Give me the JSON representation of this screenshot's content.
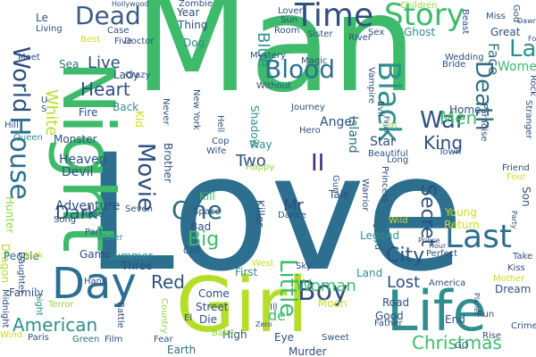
{
  "palette": {
    "navy": "#3b3b82",
    "slate": "#2f4f7f",
    "blue": "#2c6f8f",
    "teal": "#21918c",
    "green": "#3dbb6a",
    "lime": "#8fd744",
    "yellow": "#c8e020",
    "purple": "#482878"
  },
  "words": [
    {
      "text": "Man",
      "color": "#3dbb6a"
    },
    {
      "text": "Love",
      "color": "#2c6f8f"
    },
    {
      "text": "Girl",
      "color": "#b5de2b"
    },
    {
      "text": "Night",
      "color": "#3dbb6a"
    },
    {
      "text": "Life",
      "color": "#2f8f8c"
    },
    {
      "text": "Day",
      "color": "#2c6f8f"
    },
    {
      "text": "Time",
      "color": "#2f4f7f"
    },
    {
      "text": "Story",
      "color": "#3dbb6a"
    },
    {
      "text": "Dead",
      "color": "#3b5b82"
    },
    {
      "text": "House",
      "color": "#2c6f8f"
    },
    {
      "text": "World",
      "color": "#2f4f7f"
    },
    {
      "text": "Black",
      "color": "#2f8f8c"
    },
    {
      "text": "Blood",
      "color": "#2c6f8f"
    },
    {
      "text": "Death",
      "color": "#2f6f7f"
    },
    {
      "text": "Last",
      "color": "#2c6f8f"
    },
    {
      "text": "War",
      "color": "#2f4f7f"
    },
    {
      "text": "Movie",
      "color": "#2f4f7f"
    },
    {
      "text": "One",
      "color": "#2f6f7f"
    },
    {
      "text": "Boy",
      "color": "#2f4f7f"
    },
    {
      "text": "Heart",
      "color": "#2f4f7f"
    },
    {
      "text": "Big",
      "color": "#3dbb6a"
    },
    {
      "text": "Little",
      "color": "#3dbb6a"
    },
    {
      "text": "Christmas",
      "color": "#3dbb6a"
    },
    {
      "text": "American",
      "color": "#2f8f8c"
    },
    {
      "text": "City",
      "color": "#2f4f7f"
    },
    {
      "text": "Secret",
      "color": "#2f4f7f"
    },
    {
      "text": "Woman",
      "color": "#3dbb6a"
    },
    {
      "text": "Lost",
      "color": "#2f4f7f"
    },
    {
      "text": "Red",
      "color": "#2f4f7f"
    },
    {
      "text": "Dark",
      "color": "#2f4f7f"
    },
    {
      "text": "King",
      "color": "#2f4f7f"
    },
    {
      "text": "Men",
      "color": "#3dbb6a"
    },
    {
      "text": "Live",
      "color": "#2f4f7f"
    },
    {
      "text": "White",
      "color": "#b5de2b"
    },
    {
      "text": "Blue",
      "color": "#2f8f8c"
    },
    {
      "text": "Mr",
      "color": "#2f4f7f"
    },
    {
      "text": "Two",
      "color": "#2f4f7f"
    },
    {
      "text": "II",
      "color": "#482878"
    },
    {
      "text": "La",
      "color": "#2f8f8c"
    },
    {
      "text": "Women",
      "color": "#3dbb6a"
    },
    {
      "text": "Face",
      "color": "#2f6f7f"
    },
    {
      "text": "Ghost",
      "color": "#2f8f8c"
    },
    {
      "text": "Great",
      "color": "#2f4f7f"
    },
    {
      "text": "Home",
      "color": "#2f4f7f"
    },
    {
      "text": "Angel",
      "color": "#2f4f7f"
    },
    {
      "text": "Star",
      "color": "#2f4f7f"
    },
    {
      "text": "Island",
      "color": "#2f6f7f"
    },
    {
      "text": "Adventure",
      "color": "#2f4f7f"
    },
    {
      "text": "Heaven",
      "color": "#2f4f7f"
    },
    {
      "text": "Devil",
      "color": "#2f4f7f"
    },
    {
      "text": "Monster",
      "color": "#2f4f7f"
    },
    {
      "text": "Back",
      "color": "#2f8f8c"
    },
    {
      "text": "Fire",
      "color": "#2f4f7f"
    },
    {
      "text": "Lady",
      "color": "#2f4f7f"
    },
    {
      "text": "Thing",
      "color": "#2f4f7f"
    },
    {
      "text": "Year",
      "color": "#2f4f7f"
    },
    {
      "text": "Dog",
      "color": "#2f8f8c"
    },
    {
      "text": "Sea",
      "color": "#2f6f7f"
    },
    {
      "text": "Brother",
      "color": "#2f4f7f"
    },
    {
      "text": "Shadow",
      "color": "#2f8f8c"
    },
    {
      "text": "Killer",
      "color": "#2f4f7f"
    },
    {
      "text": "Kill",
      "color": "#3dbb6a"
    },
    {
      "text": "Summer",
      "color": "#2f8f8c"
    },
    {
      "text": "Three",
      "color": "#2f4f7f"
    },
    {
      "text": "Game",
      "color": "#2f4f7f"
    },
    {
      "text": "Dragon",
      "color": "#b5de2b"
    },
    {
      "text": "People",
      "color": "#2f6f7f"
    },
    {
      "text": "Family",
      "color": "#2f4f7f"
    },
    {
      "text": "Hunter",
      "color": "#8fd744"
    },
    {
      "text": "Hand",
      "color": "#2f4f7f"
    },
    {
      "text": "Street",
      "color": "#2f4f7f"
    },
    {
      "text": "Come",
      "color": "#2f4f7f"
    },
    {
      "text": "Die",
      "color": "#2f4f7f"
    },
    {
      "text": "High",
      "color": "#2f4f7f"
    },
    {
      "text": "Eye",
      "color": "#2f4f7f"
    },
    {
      "text": "Earth",
      "color": "#2f6f7f"
    },
    {
      "text": "Murder",
      "color": "#2f4f7f"
    },
    {
      "text": "Sweet",
      "color": "#2f4f7f"
    },
    {
      "text": "Father",
      "color": "#2f4f7f"
    },
    {
      "text": "Good",
      "color": "#2f4f7f"
    },
    {
      "text": "End",
      "color": "#2f4f7f"
    },
    {
      "text": "Run",
      "color": "#2f4f7f"
    },
    {
      "text": "Road",
      "color": "#2f4f7f"
    },
    {
      "text": "Dream",
      "color": "#2f4f7f"
    },
    {
      "text": "Young",
      "color": "#c8e020"
    },
    {
      "text": "Return",
      "color": "#c8e020"
    },
    {
      "text": "Beyond",
      "color": "#2f6f7f"
    },
    {
      "text": "Legend",
      "color": "#2f8f8c"
    },
    {
      "text": "Land",
      "color": "#2f8f8c"
    },
    {
      "text": "Moon",
      "color": "#c8e020"
    },
    {
      "text": "First",
      "color": "#2f8f8c"
    },
    {
      "text": "Bad",
      "color": "#2f4f7f"
    },
    {
      "text": "Call",
      "color": "#2f4f7f"
    },
    {
      "text": "Space",
      "color": "#2f4f7f"
    },
    {
      "text": "Dance",
      "color": "#2f4f7f"
    },
    {
      "text": "Son",
      "color": "#2f4f7f"
    },
    {
      "text": "Friend",
      "color": "#2f4f7f"
    },
    {
      "text": "Four",
      "color": "#c8e020"
    },
    {
      "text": "Town",
      "color": "#2f4f7f"
    },
    {
      "text": "Long",
      "color": "#2f4f7f"
    },
    {
      "text": "Beautiful",
      "color": "#2f4f7f"
    },
    {
      "text": "Princess",
      "color": "#2f4f7f"
    },
    {
      "text": "Wild",
      "color": "#c8e020"
    },
    {
      "text": "Gun",
      "color": "#2f4f7f"
    },
    {
      "text": "Paris",
      "color": "#2f4f7f"
    },
    {
      "text": "Green",
      "color": "#2f6f7f"
    },
    {
      "text": "Film",
      "color": "#2f4f7f"
    },
    {
      "text": "Fear",
      "color": "#2f4f7f"
    },
    {
      "text": "Baby",
      "color": "#8fd744"
    },
    {
      "text": "Battle",
      "color": "#2f4f7f"
    },
    {
      "text": "Country",
      "color": "#8fd744"
    },
    {
      "text": "Terror",
      "color": "#8fd744"
    },
    {
      "text": "Light",
      "color": "#2f8f8c"
    },
    {
      "text": "Midnight",
      "color": "#2f4f7f"
    },
    {
      "text": "Daughter",
      "color": "#2f4f7f"
    },
    {
      "text": "Jack",
      "color": "#c8e020"
    },
    {
      "text": "Song",
      "color": "#2f4f7f"
    },
    {
      "text": "Rose",
      "color": "#2f4f7f"
    },
    {
      "text": "Seven",
      "color": "#2f4f7f"
    },
    {
      "text": "Part",
      "color": "#2f4f7f"
    },
    {
      "text": "Water",
      "color": "#2f8f8c"
    },
    {
      "text": "Wind",
      "color": "#c8e020"
    },
    {
      "text": "Queen",
      "color": "#2f8f8c"
    },
    {
      "text": "Hill",
      "color": "#2f4f7f"
    },
    {
      "text": "Kid",
      "color": "#c8e020"
    },
    {
      "text": "Way",
      "color": "#2f8f8c"
    },
    {
      "text": "Cop",
      "color": "#2f4f7f"
    },
    {
      "text": "Wife",
      "color": "#2f4f7f"
    },
    {
      "text": "Happy",
      "color": "#8fd744"
    },
    {
      "text": "Hero",
      "color": "#2f4f7f"
    },
    {
      "text": "Journey",
      "color": "#2f4f7f"
    },
    {
      "text": "Hell",
      "color": "#2f4f7f"
    },
    {
      "text": "Sky",
      "color": "#2f4f7f"
    },
    {
      "text": "Perfect",
      "color": "#2f4f7f"
    },
    {
      "text": "Take",
      "color": "#2f4f7f"
    },
    {
      "text": "Kiss",
      "color": "#2f4f7f"
    },
    {
      "text": "Mother",
      "color": "#c8e020"
    },
    {
      "text": "Crime",
      "color": "#2f4f7f"
    },
    {
      "text": "Rise",
      "color": "#2f4f7f"
    },
    {
      "text": "GO",
      "color": "#2f4f7f"
    },
    {
      "text": "America",
      "color": "#2f4f7f"
    },
    {
      "text": "Magic",
      "color": "#2f4f7f"
    },
    {
      "text": "Mystery",
      "color": "#2f4f7f"
    },
    {
      "text": "Without",
      "color": "#2f4f7f"
    },
    {
      "text": "Lover",
      "color": "#2f4f7f"
    },
    {
      "text": "Sun",
      "color": "#2f4f7f"
    },
    {
      "text": "Room",
      "color": "#2f4f7f"
    },
    {
      "text": "Sister",
      "color": "#2f4f7f"
    },
    {
      "text": "River",
      "color": "#2f4f7f"
    },
    {
      "text": "Sex",
      "color": "#2f4f7f"
    },
    {
      "text": "Children",
      "color": "#8fd744"
    },
    {
      "text": "Beast",
      "color": "#2f4f7f"
    },
    {
      "text": "Miss",
      "color": "#2f4f7f"
    },
    {
      "text": "God",
      "color": "#2f4f7f"
    },
    {
      "text": "Wedding",
      "color": "#2f4f7f"
    },
    {
      "text": "Bride",
      "color": "#2f4f7f"
    },
    {
      "text": "Vampire",
      "color": "#2f4f7f"
    },
    {
      "text": "Evil",
      "color": "#2f4f7f"
    },
    {
      "text": "Cat",
      "color": "#8fd744"
    },
    {
      "text": "Paradise",
      "color": "#2f4f7f"
    },
    {
      "text": "Stranger",
      "color": "#2f4f7f"
    },
    {
      "text": "Rock",
      "color": "#2f4f7f"
    },
    {
      "text": "New York",
      "color": "#2f4f7f"
    },
    {
      "text": "Never",
      "color": "#2f4f7f"
    },
    {
      "text": "Crazy",
      "color": "#2f4f7f"
    },
    {
      "text": "Case",
      "color": "#2f4f7f"
    },
    {
      "text": "Five",
      "color": "#2f4f7f"
    },
    {
      "text": "Doctor",
      "color": "#2f4f7f"
    },
    {
      "text": "Best",
      "color": "#c8e020"
    },
    {
      "text": "Living",
      "color": "#2f4f7f"
    },
    {
      "text": "Le",
      "color": "#2f4f7f"
    },
    {
      "text": "Meet",
      "color": "#2f4f7f"
    },
    {
      "text": "Zombie",
      "color": "#2f4f7f"
    },
    {
      "text": "Warrior",
      "color": "#2f4f7f"
    },
    {
      "text": "Tale",
      "color": "#2f4f7f"
    },
    {
      "text": "de",
      "color": "#3dbb6a"
    },
    {
      "text": "El",
      "color": "#2f4f7f"
    },
    {
      "text": "Ill",
      "color": "#2f4f7f"
    },
    {
      "text": "West",
      "color": "#c8e020"
    },
    {
      "text": "Prince",
      "color": "#2f4f7f"
    },
    {
      "text": "Hour",
      "color": "#2f4f7f"
    },
    {
      "text": "Final",
      "color": "#2f4f7f"
    },
    {
      "text": "Dawn",
      "color": "#2f4f7f"
    },
    {
      "text": "Fox",
      "color": "#2f4f7f"
    },
    {
      "text": "Party",
      "color": "#2f4f7f"
    },
    {
      "text": "Hollywood",
      "color": "#2f4f7f"
    },
    {
      "text": "Planet",
      "color": "#2f4f7f"
    },
    {
      "text": "Zero",
      "color": "#2f4f7f"
    },
    {
      "text": "U",
      "color": "#2f4f7f"
    },
    {
      "text": "S",
      "color": "#2f4f7f"
    }
  ]
}
